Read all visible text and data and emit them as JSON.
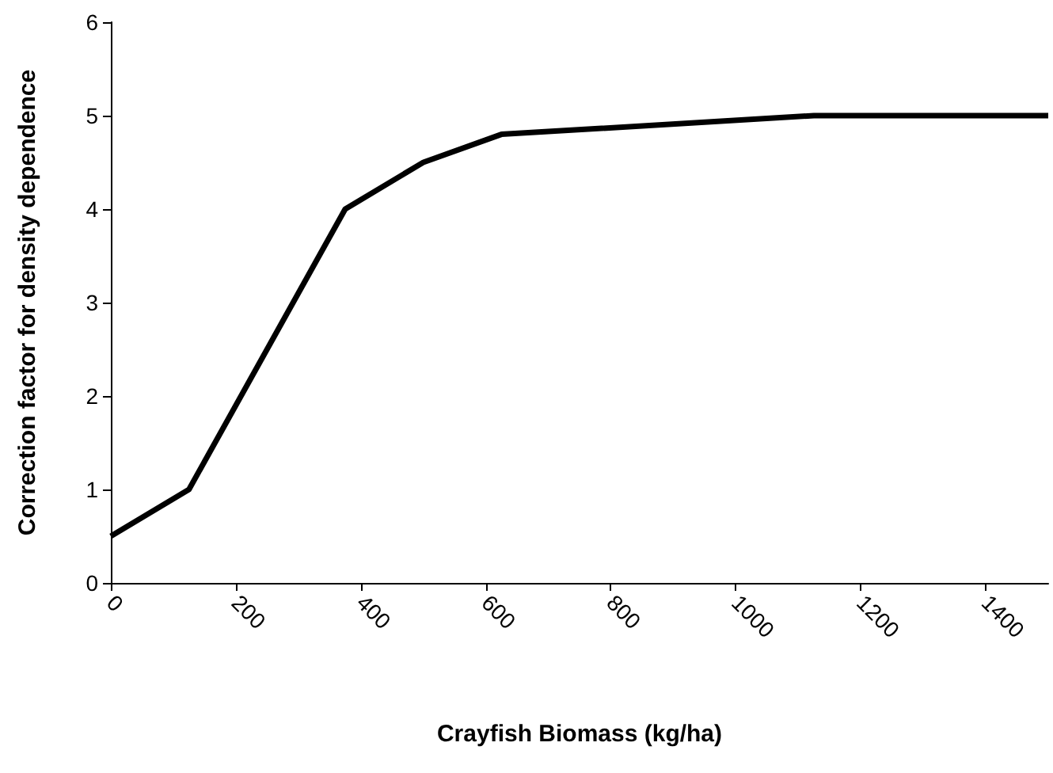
{
  "chart_data": {
    "type": "line",
    "xlabel": "Crayfish Biomass (kg/ha)",
    "ylabel": "Correction factor for density dependence",
    "x": [
      0,
      125,
      375,
      500,
      625,
      1125,
      1500
    ],
    "series": [
      {
        "color": "#000000",
        "values": [
          0.5,
          1,
          4,
          4.5,
          4.8,
          5,
          5
        ]
      }
    ],
    "xlim": [
      0,
      1500
    ],
    "xticks": [
      0,
      200,
      400,
      600,
      800,
      1000,
      1200,
      1400
    ],
    "ylim": [
      0,
      6
    ],
    "yticks": [
      0,
      1,
      2,
      3,
      4,
      5,
      6
    ],
    "grid": false,
    "marker": "none",
    "line_style": "solid"
  }
}
